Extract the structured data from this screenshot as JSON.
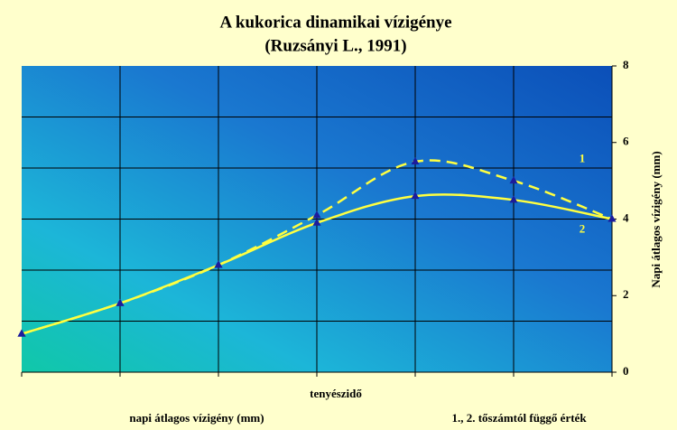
{
  "chart_data": {
    "type": "line",
    "title": "A kukorica dinamikai vízigénye",
    "subtitle": "(Ruzsányi L., 1991)",
    "x_label": "tenyészidő",
    "y_label": "Napi átlagos vízigény (mm)",
    "footer_left": "napi átlagos vízigény (mm)",
    "footer_right": "1., 2. tőszámtól függő érték",
    "categories": [
      null,
      null,
      null,
      null,
      null,
      null,
      null
    ],
    "series": [
      {
        "name": "1",
        "color": "#ffff40",
        "dashed": true,
        "values": [
          1.0,
          1.8,
          2.8,
          4.1,
          5.5,
          5.0,
          4.0
        ]
      },
      {
        "name": "2",
        "color": "#ffff40",
        "dashed": false,
        "values": [
          1.0,
          1.8,
          2.8,
          3.9,
          4.6,
          4.5,
          4.0
        ]
      }
    ],
    "marker_color": "#1c1c9c",
    "ylim": [
      0,
      8
    ],
    "yticks": [
      0,
      2,
      4,
      6,
      8
    ],
    "grid": true
  }
}
